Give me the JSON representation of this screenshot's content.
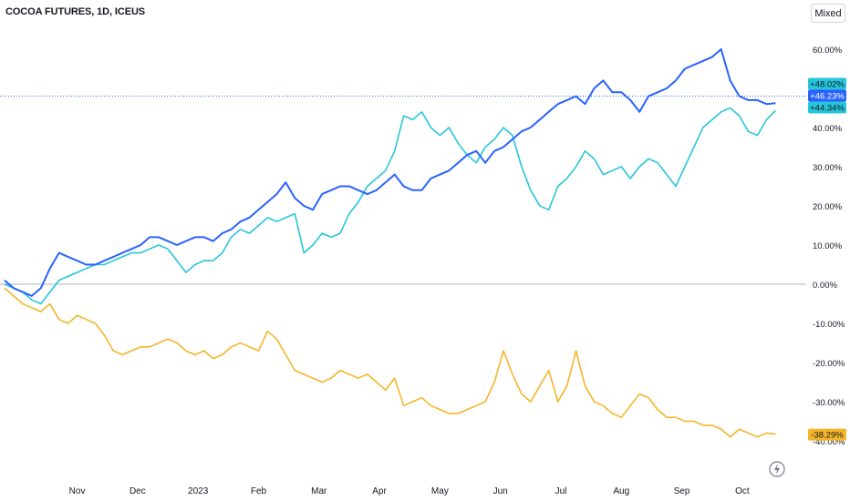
{
  "title": "COCOA FUTURES, 1D, ICEUS",
  "scale_mode_label": "Mixed",
  "colors": {
    "series_primary": "#2962ff",
    "series_teal": "#26c6da",
    "series_gold": "#f5b529",
    "zero_line": "#b2b5be",
    "crosshair": "#2962ff"
  },
  "icons": {
    "lightning": "lightning-icon"
  },
  "chart_data": {
    "type": "line",
    "ylim": [
      -45,
      65
    ],
    "y_ticks": [
      "60.00%",
      "50.00%",
      "40.00%",
      "30.00%",
      "20.00%",
      "10.00%",
      "0.00%",
      "-10.00%",
      "-20.00%",
      "-30.00%",
      "-40.00%"
    ],
    "y_tick_values": [
      60,
      50,
      40,
      30,
      20,
      10,
      0,
      -10,
      -20,
      -30,
      -40
    ],
    "x_ticks": [
      "Nov",
      "Dec",
      "2023",
      "Feb",
      "Mar",
      "Apr",
      "May",
      "Jun",
      "Jul",
      "Aug",
      "Sep",
      "Oct"
    ],
    "x_tick_values": [
      1.2,
      2.2,
      3.2,
      4.2,
      5.2,
      6.2,
      7.2,
      8.2,
      9.2,
      10.2,
      11.2,
      12.2
    ],
    "grid": false,
    "x_range": [
      0,
      12.85
    ],
    "series": [
      {
        "color": "#2962ff",
        "last_label": "+46.23%",
        "last_value": 46.23,
        "x": [
          0,
          0.15,
          0.3,
          0.45,
          0.6,
          0.75,
          0.9,
          1.05,
          1.2,
          1.35,
          1.5,
          1.65,
          1.8,
          1.95,
          2.1,
          2.25,
          2.4,
          2.55,
          2.7,
          2.85,
          3.0,
          3.15,
          3.3,
          3.45,
          3.6,
          3.75,
          3.9,
          4.05,
          4.2,
          4.35,
          4.5,
          4.65,
          4.8,
          4.95,
          5.1,
          5.25,
          5.4,
          5.55,
          5.7,
          5.85,
          6.0,
          6.15,
          6.3,
          6.45,
          6.6,
          6.75,
          6.9,
          7.05,
          7.2,
          7.35,
          7.5,
          7.65,
          7.8,
          7.95,
          8.1,
          8.25,
          8.4,
          8.55,
          8.7,
          8.85,
          9.0,
          9.15,
          9.3,
          9.45,
          9.6,
          9.75,
          9.9,
          10.05,
          10.2,
          10.35,
          10.5,
          10.65,
          10.8,
          10.95,
          11.1,
          11.25,
          11.4,
          11.55,
          11.7,
          11.85,
          12.0,
          12.15,
          12.3,
          12.45,
          12.6,
          12.75
        ],
        "y": [
          1,
          -1,
          -2,
          -3,
          -1,
          4,
          8,
          7,
          6,
          5,
          5,
          6,
          7,
          8,
          9,
          10,
          12,
          12,
          11,
          10,
          11,
          12,
          12,
          11,
          13,
          14,
          16,
          17,
          19,
          21,
          23,
          26,
          22,
          20,
          19,
          23,
          24,
          25,
          25,
          24,
          23,
          24,
          26,
          28,
          25,
          24,
          24,
          27,
          28,
          29,
          31,
          33,
          34,
          31,
          34,
          35,
          37,
          39,
          40,
          42,
          44,
          46,
          47,
          48,
          46,
          50,
          52,
          49,
          49,
          47,
          44,
          48,
          49,
          50,
          52,
          55,
          56,
          57,
          58,
          60,
          52,
          48,
          47,
          47,
          46,
          46.23
        ]
      },
      {
        "color": "#26c6da",
        "last_label": "+44.34%",
        "last_value": 44.34,
        "x": [
          0,
          0.15,
          0.3,
          0.45,
          0.6,
          0.75,
          0.9,
          1.05,
          1.2,
          1.35,
          1.5,
          1.65,
          1.8,
          1.95,
          2.1,
          2.25,
          2.4,
          2.55,
          2.7,
          2.85,
          3.0,
          3.15,
          3.3,
          3.45,
          3.6,
          3.75,
          3.9,
          4.05,
          4.2,
          4.35,
          4.5,
          4.65,
          4.8,
          4.95,
          5.1,
          5.25,
          5.4,
          5.55,
          5.7,
          5.85,
          6.0,
          6.15,
          6.3,
          6.45,
          6.6,
          6.75,
          6.9,
          7.05,
          7.2,
          7.35,
          7.5,
          7.65,
          7.8,
          7.95,
          8.1,
          8.25,
          8.4,
          8.55,
          8.7,
          8.85,
          9.0,
          9.15,
          9.3,
          9.45,
          9.6,
          9.75,
          9.9,
          10.05,
          10.2,
          10.35,
          10.5,
          10.65,
          10.8,
          10.95,
          11.1,
          11.25,
          11.4,
          11.55,
          11.7,
          11.85,
          12.0,
          12.15,
          12.3,
          12.45,
          12.6,
          12.75
        ],
        "y": [
          0,
          -1,
          -2,
          -4,
          -5,
          -2,
          1,
          2,
          3,
          4,
          5,
          5,
          6,
          7,
          8,
          8,
          9,
          10,
          9,
          6,
          3,
          5,
          6,
          6,
          8,
          12,
          14,
          13,
          15,
          17,
          16,
          17,
          18,
          8,
          10,
          13,
          12,
          13,
          18,
          21,
          25,
          27,
          29,
          34,
          43,
          42,
          44,
          40,
          38,
          40,
          36,
          33,
          31,
          35,
          37,
          40,
          38,
          30,
          24,
          20,
          19,
          25,
          27,
          30,
          34,
          32,
          28,
          29,
          30,
          27,
          30,
          32,
          31,
          28,
          25,
          30,
          35,
          40,
          42,
          44,
          45,
          43,
          39,
          38,
          42,
          44.34
        ]
      },
      {
        "color": "#f5b529",
        "last_label": "-38.29%",
        "last_value": -38.29,
        "x": [
          0,
          0.15,
          0.3,
          0.45,
          0.6,
          0.75,
          0.9,
          1.05,
          1.2,
          1.35,
          1.5,
          1.65,
          1.8,
          1.95,
          2.1,
          2.25,
          2.4,
          2.55,
          2.7,
          2.85,
          3.0,
          3.15,
          3.3,
          3.45,
          3.6,
          3.75,
          3.9,
          4.05,
          4.2,
          4.35,
          4.5,
          4.65,
          4.8,
          4.95,
          5.1,
          5.25,
          5.4,
          5.55,
          5.7,
          5.85,
          6.0,
          6.15,
          6.3,
          6.45,
          6.6,
          6.75,
          6.9,
          7.05,
          7.2,
          7.35,
          7.5,
          7.65,
          7.8,
          7.95,
          8.1,
          8.25,
          8.4,
          8.55,
          8.7,
          8.85,
          9.0,
          9.15,
          9.3,
          9.45,
          9.6,
          9.75,
          9.9,
          10.05,
          10.2,
          10.35,
          10.5,
          10.65,
          10.8,
          10.95,
          11.1,
          11.25,
          11.4,
          11.55,
          11.7,
          11.85,
          12.0,
          12.15,
          12.3,
          12.45,
          12.6,
          12.75
        ],
        "y": [
          -1,
          -3,
          -5,
          -6,
          -7,
          -5,
          -9,
          -10,
          -8,
          -9,
          -10,
          -13,
          -17,
          -18,
          -17,
          -16,
          -16,
          -15,
          -14,
          -15,
          -17,
          -18,
          -17,
          -19,
          -18,
          -16,
          -15,
          -16,
          -17,
          -12,
          -14,
          -18,
          -22,
          -23,
          -24,
          -25,
          -24,
          -22,
          -23,
          -24,
          -23,
          -25,
          -27,
          -24,
          -31,
          -30,
          -29,
          -31,
          -32,
          -33,
          -33,
          -32,
          -31,
          -30,
          -25,
          -17,
          -23,
          -28,
          -30,
          -26,
          -22,
          -30,
          -26,
          -17,
          -26,
          -30,
          -31,
          -33,
          -34,
          -31,
          -28,
          -29,
          -32,
          -34,
          -34,
          -35,
          -35,
          -36,
          -36,
          -37,
          -39,
          -37,
          -38,
          -39,
          -38,
          -38.29
        ]
      }
    ]
  }
}
